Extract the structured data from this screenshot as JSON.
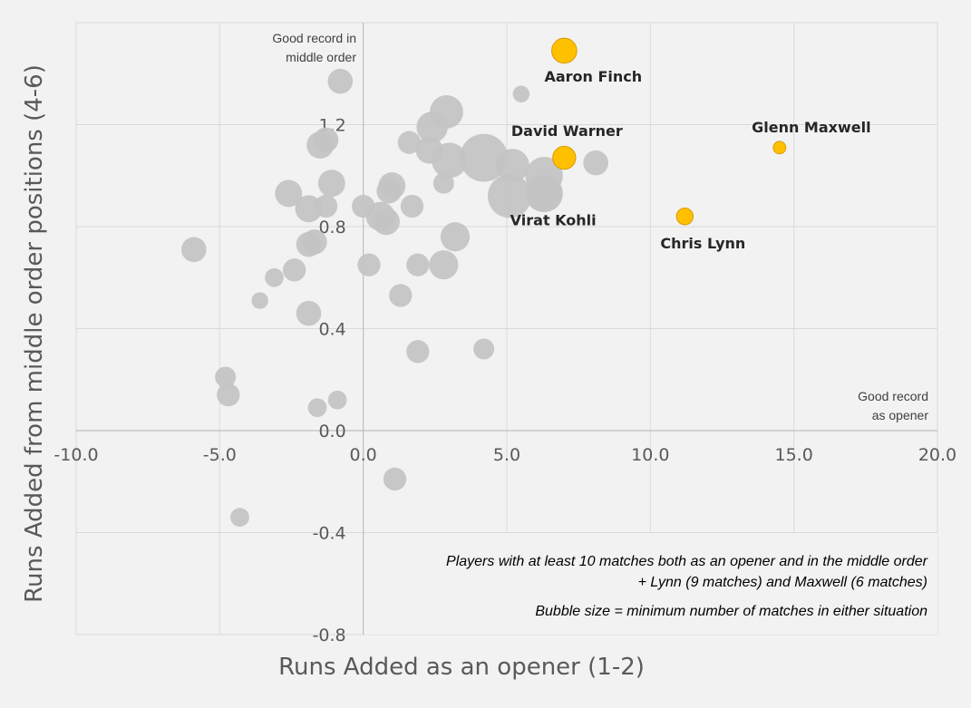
{
  "chart_data": {
    "type": "scatter",
    "title": "",
    "xlabel": "Runs Added as an opener (1-2)",
    "ylabel": "Runs Added from middle order positions (4-6)",
    "xlim": [
      -10,
      20
    ],
    "ylim": [
      -0.8,
      1.6
    ],
    "x_ticks": [
      "-10.0",
      "-5.0",
      "0.0",
      "5.0",
      "10.0",
      "15.0",
      "20.0"
    ],
    "y_ticks": [
      "-0.8",
      "-0.4",
      "0.0",
      "0.4",
      "0.8",
      "1.2"
    ],
    "grid": true,
    "colors": {
      "default": "#c4c4c4",
      "highlight": "#ffc000",
      "highlight_stroke": "#d99a00"
    },
    "corner_notes": {
      "top_left": [
        "Good record in",
        "middle order"
      ],
      "bottom_right": [
        "Good record",
        "as opener"
      ]
    },
    "notes": [
      "Players with at least 10 matches both as an opener and in the middle order",
      "+ Lynn (9 matches) and Maxwell (6 matches)",
      "Bubble size = minimum number of matches in either situation"
    ],
    "highlighted": [
      {
        "name": "Aaron Finch",
        "x": 7.0,
        "y": 1.49,
        "size": 12
      },
      {
        "name": "David Warner",
        "x": 7.0,
        "y": 1.07,
        "size": 11
      },
      {
        "name": "Glenn Maxwell",
        "x": 14.5,
        "y": 1.11,
        "size": 6
      },
      {
        "name": "Chris Lynn",
        "x": 11.2,
        "y": 0.84,
        "size": 8
      },
      {
        "name": "Virat Kohli",
        "x": 6.3,
        "y": 0.93,
        "size": 18
      }
    ],
    "points": [
      {
        "x": -0.8,
        "y": 1.37,
        "size": 12
      },
      {
        "x": 5.5,
        "y": 1.32,
        "size": 8
      },
      {
        "x": 2.9,
        "y": 1.25,
        "size": 16
      },
      {
        "x": 2.4,
        "y": 1.19,
        "size": 15
      },
      {
        "x": -1.3,
        "y": 1.14,
        "size": 12
      },
      {
        "x": -1.5,
        "y": 1.12,
        "size": 13
      },
      {
        "x": 1.6,
        "y": 1.13,
        "size": 11
      },
      {
        "x": 2.3,
        "y": 1.1,
        "size": 13
      },
      {
        "x": 3.0,
        "y": 1.06,
        "size": 17
      },
      {
        "x": 4.2,
        "y": 1.07,
        "size": 23
      },
      {
        "x": 5.2,
        "y": 1.04,
        "size": 16
      },
      {
        "x": 8.1,
        "y": 1.05,
        "size": 12
      },
      {
        "x": 6.3,
        "y": 1.0,
        "size": 18
      },
      {
        "x": 5.1,
        "y": 0.92,
        "size": 21
      },
      {
        "x": -1.1,
        "y": 0.97,
        "size": 13
      },
      {
        "x": 1.0,
        "y": 0.96,
        "size": 13
      },
      {
        "x": 2.8,
        "y": 0.97,
        "size": 10
      },
      {
        "x": -2.6,
        "y": 0.93,
        "size": 13
      },
      {
        "x": 0.9,
        "y": 0.94,
        "size": 12
      },
      {
        "x": -1.3,
        "y": 0.88,
        "size": 11
      },
      {
        "x": 0.0,
        "y": 0.88,
        "size": 11
      },
      {
        "x": 1.7,
        "y": 0.88,
        "size": 11
      },
      {
        "x": -1.9,
        "y": 0.87,
        "size": 13
      },
      {
        "x": 0.6,
        "y": 0.84,
        "size": 14
      },
      {
        "x": 0.8,
        "y": 0.82,
        "size": 13
      },
      {
        "x": 3.2,
        "y": 0.76,
        "size": 14
      },
      {
        "x": -1.7,
        "y": 0.74,
        "size": 12
      },
      {
        "x": -1.9,
        "y": 0.73,
        "size": 12
      },
      {
        "x": -5.9,
        "y": 0.71,
        "size": 12
      },
      {
        "x": 0.2,
        "y": 0.65,
        "size": 11
      },
      {
        "x": 1.9,
        "y": 0.65,
        "size": 11
      },
      {
        "x": 2.8,
        "y": 0.65,
        "size": 14
      },
      {
        "x": -2.4,
        "y": 0.63,
        "size": 11
      },
      {
        "x": -3.1,
        "y": 0.6,
        "size": 9
      },
      {
        "x": -3.6,
        "y": 0.51,
        "size": 8
      },
      {
        "x": 1.3,
        "y": 0.53,
        "size": 11
      },
      {
        "x": -1.9,
        "y": 0.46,
        "size": 12
      },
      {
        "x": 1.9,
        "y": 0.31,
        "size": 11
      },
      {
        "x": 4.2,
        "y": 0.32,
        "size": 10
      },
      {
        "x": -4.8,
        "y": 0.21,
        "size": 10
      },
      {
        "x": -4.7,
        "y": 0.14,
        "size": 11
      },
      {
        "x": -0.9,
        "y": 0.12,
        "size": 9
      },
      {
        "x": -1.6,
        "y": 0.09,
        "size": 9
      },
      {
        "x": 1.1,
        "y": -0.19,
        "size": 11
      },
      {
        "x": -4.3,
        "y": -0.34,
        "size": 9
      }
    ]
  }
}
